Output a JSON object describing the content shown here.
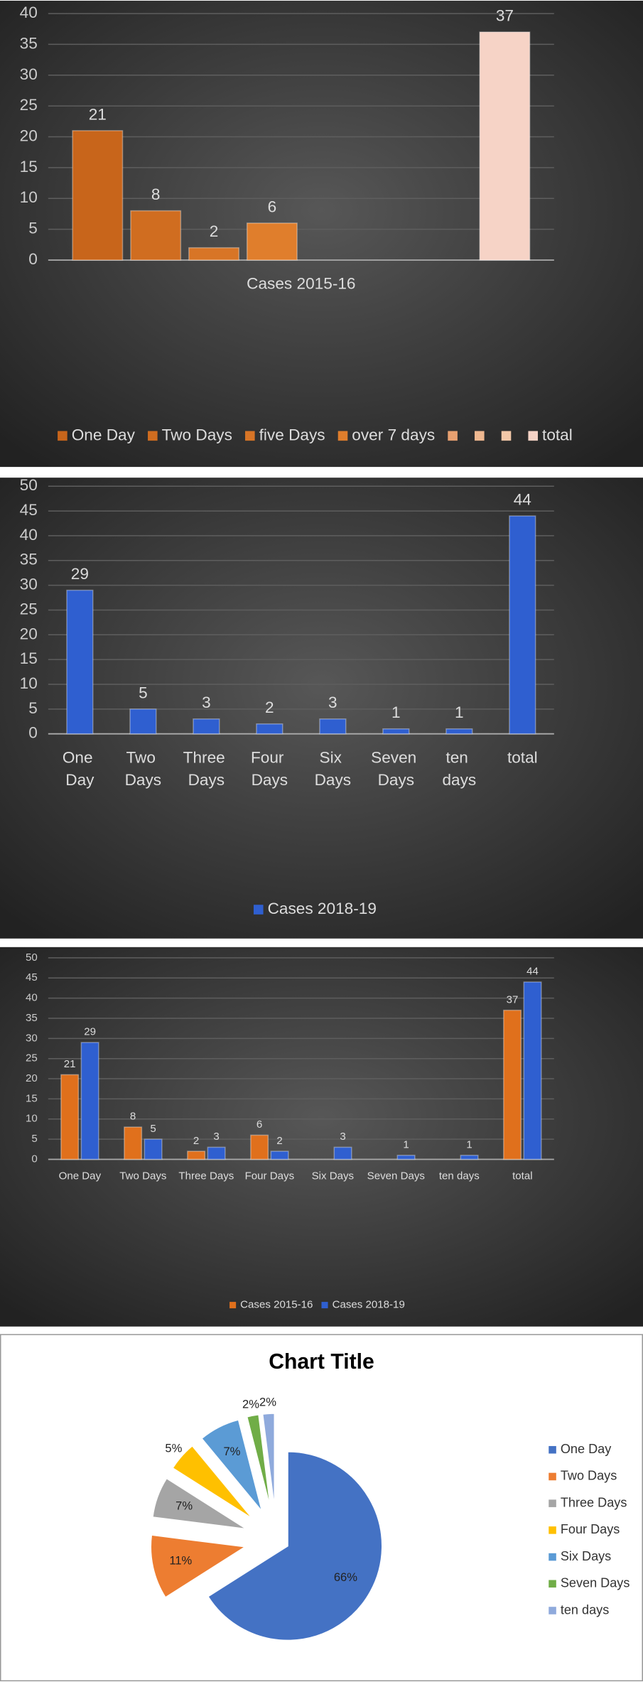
{
  "chart_data": [
    {
      "type": "bar",
      "categories": [
        "Cases 2015-16"
      ],
      "series": [
        {
          "name": "One Day",
          "color": "#c8651b",
          "values": [
            21
          ]
        },
        {
          "name": "Two Days",
          "color": "#d06d20",
          "values": [
            8
          ]
        },
        {
          "name": "five Days",
          "color": "#d87526",
          "values": [
            2
          ]
        },
        {
          "name": "over 7 days",
          "color": "#e07e2c",
          "values": [
            6
          ]
        },
        {
          "name": null,
          "color": "#e8a070",
          "values": [
            null
          ]
        },
        {
          "name": null,
          "color": "#efb890",
          "values": [
            null
          ]
        },
        {
          "name": null,
          "color": "#f3c8a8",
          "values": [
            null
          ]
        },
        {
          "name": "total",
          "color": "#f6d3c6",
          "values": [
            37
          ]
        }
      ],
      "ylim": [
        0,
        40
      ],
      "yticks": [
        0,
        5,
        10,
        15,
        20,
        25,
        30,
        35,
        40
      ],
      "grid": true,
      "legend": "bottom"
    },
    {
      "type": "bar",
      "categories": [
        "One Day",
        "Two Days",
        "Three Days",
        "Four Days",
        "Six Days",
        "Seven Days",
        "ten days",
        "total"
      ],
      "series": [
        {
          "name": "Cases 2018-19",
          "color": "#2f5fd0",
          "values": [
            29,
            5,
            3,
            2,
            3,
            1,
            1,
            44
          ]
        }
      ],
      "ylim": [
        0,
        50
      ],
      "yticks": [
        0,
        5,
        10,
        15,
        20,
        25,
        30,
        35,
        40,
        45,
        50
      ],
      "grid": true,
      "legend": "bottom"
    },
    {
      "type": "bar",
      "categories": [
        "One Day",
        "Two Days",
        "Three Days",
        "Four Days",
        "Six Days",
        "Seven Days",
        "ten days",
        "total"
      ],
      "series": [
        {
          "name": "Cases 2015-16",
          "color": "#e0701c",
          "values": [
            21,
            8,
            2,
            6,
            null,
            null,
            null,
            37
          ]
        },
        {
          "name": "Cases 2018-19",
          "color": "#2f5fd0",
          "values": [
            29,
            5,
            3,
            2,
            3,
            1,
            1,
            44
          ]
        }
      ],
      "ylim": [
        0,
        50
      ],
      "yticks": [
        0,
        5,
        10,
        15,
        20,
        25,
        30,
        35,
        40,
        45,
        50
      ],
      "grid": true,
      "legend": "bottom"
    },
    {
      "type": "pie",
      "title": "Chart Title",
      "categories": [
        "One Day",
        "Two Days",
        "Three Days",
        "Four Days",
        "Six Days",
        "Seven Days",
        "ten days"
      ],
      "values": [
        66,
        11,
        7,
        5,
        7,
        2,
        2
      ],
      "value_labels": [
        "66%",
        "11%",
        "7%",
        "5%",
        "7%",
        "2%",
        "2%"
      ],
      "colors": [
        "#4472c4",
        "#ed7d31",
        "#a5a5a5",
        "#ffc000",
        "#5b9bd5",
        "#70ad47",
        "#8faadc"
      ],
      "legend": "right"
    }
  ]
}
